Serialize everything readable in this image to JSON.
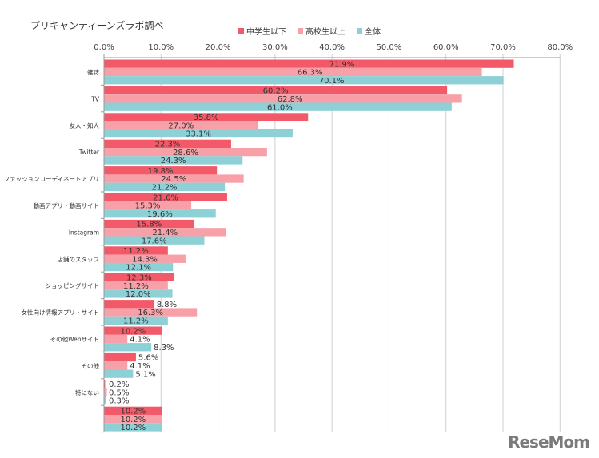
{
  "chart_data": {
    "type": "bar",
    "orientation": "horizontal",
    "title": "プリキャンティーンズラボ調べ",
    "categories": [
      "雑誌",
      "TV",
      "友人・知人",
      "Twitter",
      "ファッションコーディネートアプリ",
      "動画アプリ・動画サイト",
      "Instagram",
      "店舗のスタッフ",
      "ショッピングサイト",
      "女性向け情報アプリ・サイト",
      "その他Webサイト",
      "その他",
      "特にない",
      ""
    ],
    "series": [
      {
        "name": "中学生以下",
        "color": "#f25a6a",
        "values": [
          71.9,
          60.2,
          35.8,
          22.3,
          19.8,
          21.6,
          15.8,
          11.2,
          12.3,
          8.8,
          10.2,
          5.6,
          0.2,
          10.2
        ]
      },
      {
        "name": "高校生以上",
        "color": "#f7a0a8",
        "values": [
          66.3,
          62.8,
          27.0,
          28.6,
          24.5,
          15.3,
          21.4,
          14.3,
          11.2,
          16.3,
          4.1,
          4.1,
          0.5,
          10.2
        ]
      },
      {
        "name": "全体",
        "color": "#8dd0d6",
        "values": [
          70.1,
          61.0,
          33.1,
          24.3,
          21.2,
          19.6,
          17.6,
          12.1,
          12.0,
          11.2,
          8.3,
          5.1,
          0.3,
          10.2
        ]
      }
    ],
    "xlim": [
      0,
      80
    ],
    "xticks": [
      "0.0%",
      "10.0%",
      "20.0%",
      "30.0%",
      "40.0%",
      "50.0%",
      "60.0%",
      "70.0%",
      "80.0%"
    ],
    "axis_position": "top",
    "grid": true,
    "legend": "top"
  },
  "logo": "ReseMom"
}
